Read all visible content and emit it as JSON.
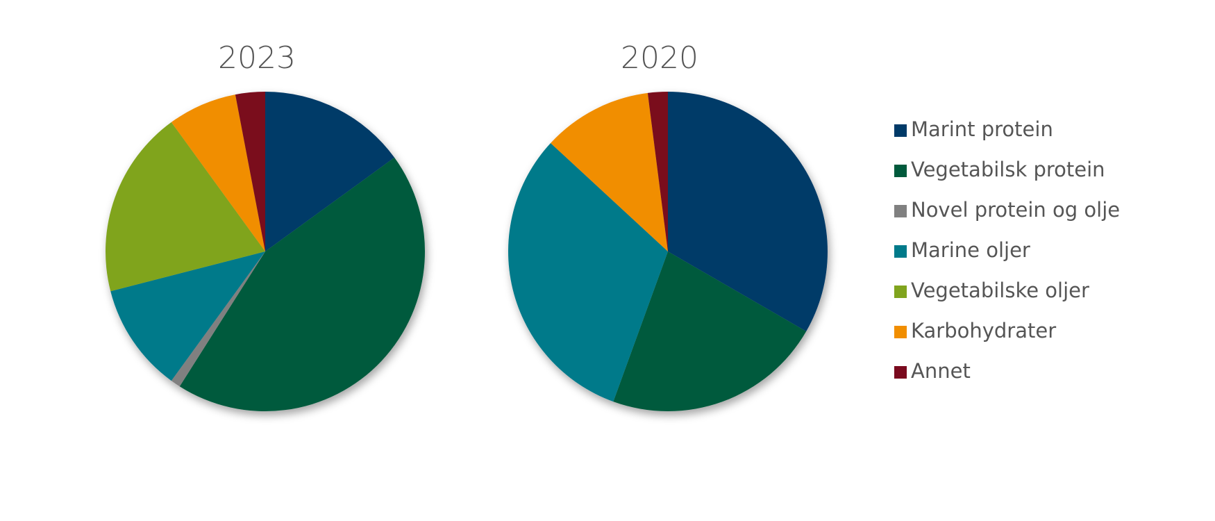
{
  "chart_data": [
    {
      "type": "pie",
      "title": "2023",
      "categories": [
        "Marint protein",
        "Vegetabilsk protein",
        "Novel protein og olje",
        "Marine oljer",
        "Vegetabilske oljer",
        "Karbohydrater",
        "Annet"
      ],
      "values": [
        15,
        44,
        1,
        11,
        19,
        7,
        3
      ],
      "colors": [
        "#003a68",
        "#005a3c",
        "#808080",
        "#007a8a",
        "#80a41e",
        "#f18e00",
        "#7a0a1e"
      ]
    },
    {
      "type": "pie",
      "title": "2020",
      "categories": [
        "Marint protein",
        "Vegetabilsk protein",
        "Novel protein og olje",
        "Marine oljer",
        "Vegetabilske oljer",
        "Karbohydrater",
        "Annet"
      ],
      "values": [
        33,
        22,
        0,
        31,
        0,
        11,
        2
      ],
      "colors": [
        "#003a68",
        "#005a3c",
        "#808080",
        "#007a8a",
        "#80a41e",
        "#f18e00",
        "#7a0a1e"
      ],
      "legend": "right"
    }
  ]
}
